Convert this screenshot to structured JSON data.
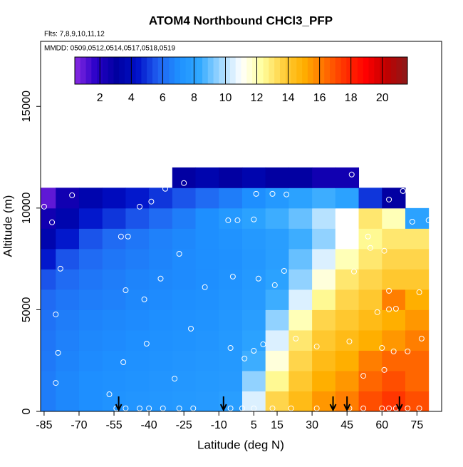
{
  "chart_data": {
    "type": "heatmap",
    "title": "ATOM4 Northbound CHCl3_PFP",
    "subtitle": "Flts: 7,8,9,10,11,12",
    "annotation": "MMDD: 0509,0512,0514,0517,0518,0519",
    "x_label": "Latitude (deg N)",
    "y_label": "Altitude (m)",
    "xlim": [
      -86.5,
      85.6
    ],
    "ylim": [
      0,
      18200
    ],
    "xticks": [
      -85,
      -70,
      -55,
      -40,
      -25,
      -10,
      5,
      15,
      30,
      45,
      60,
      75
    ],
    "yticks": [
      0,
      5000,
      10000,
      15000
    ],
    "x": [
      -85,
      -75,
      -65,
      -55,
      -45,
      -35,
      -25,
      -15,
      -5,
      5,
      15,
      25,
      35,
      45,
      55,
      65,
      75
    ],
    "y": [
      500,
      1500,
      2500,
      3500,
      4500,
      5500,
      6500,
      7500,
      8500,
      9500,
      10500,
      11500
    ],
    "values": [
      [
        6.5,
        6.8,
        7,
        7.2,
        7.3,
        7.4,
        7.5,
        7.6,
        7.8,
        10.5,
        13.5,
        14.5,
        15.5,
        16,
        17,
        17.5,
        17
      ],
      [
        6.5,
        6.8,
        7,
        7.1,
        7.2,
        7.3,
        7.4,
        7.5,
        7.6,
        9.5,
        12.5,
        14,
        15,
        15.5,
        16.5,
        17,
        16.5
      ],
      [
        6.4,
        6.7,
        6.9,
        7,
        7.1,
        7.2,
        7.3,
        7.4,
        7.5,
        8.5,
        11.5,
        13.5,
        14.5,
        15,
        16,
        16.5,
        16.5
      ],
      [
        6.3,
        6.6,
        6.8,
        6.9,
        7,
        7.1,
        7.2,
        7.3,
        7.5,
        8,
        10.5,
        13,
        14,
        14.5,
        15,
        15.5,
        16
      ],
      [
        6.2,
        6.5,
        6.7,
        6.8,
        6.9,
        7,
        7.1,
        7.2,
        7.4,
        7.8,
        9.5,
        12,
        13.5,
        14,
        14.5,
        15,
        15.5
      ],
      [
        6,
        6.3,
        6.5,
        6.6,
        6.8,
        6.9,
        7,
        7.1,
        7.3,
        7.6,
        8.5,
        10.5,
        12.5,
        13.5,
        14,
        16,
        15
      ],
      [
        5.5,
        6,
        6.3,
        6.5,
        6.7,
        6.8,
        6.9,
        7,
        7.2,
        7.5,
        8,
        9.5,
        11.5,
        13,
        13.5,
        14,
        14
      ],
      [
        4.5,
        5.5,
        6,
        6.3,
        6.5,
        6.7,
        6.9,
        7,
        7.1,
        7.4,
        7.8,
        9,
        10.5,
        12,
        13,
        13.5,
        13.5
      ],
      [
        3.5,
        4.5,
        5.5,
        6,
        6.3,
        6.6,
        6.8,
        7,
        7.2,
        7.5,
        7.8,
        8.5,
        9.5,
        11,
        12.5,
        13,
        13
      ],
      [
        2.5,
        3.5,
        4.5,
        5,
        5.5,
        6,
        6.5,
        7,
        7.5,
        8,
        8.5,
        9,
        10,
        11,
        13,
        12,
        8
      ],
      [
        1,
        2.5,
        3.5,
        4,
        4.5,
        5,
        5.5,
        6,
        6.5,
        7,
        7.5,
        8,
        8.5,
        8,
        5,
        3,
        null
      ],
      [
        null,
        null,
        null,
        null,
        null,
        null,
        3,
        3.5,
        3,
        3.5,
        3,
        3,
        2.5,
        2.5,
        null,
        null,
        null
      ]
    ],
    "colorbar": {
      "lim": [
        0.4,
        21.6
      ],
      "ticks": [
        2,
        4,
        6,
        8,
        10,
        12,
        14,
        16,
        18,
        20
      ],
      "colors": [
        "#8a2be2",
        "#2a00c8",
        "#0000a0",
        "#0010c8",
        "#2060f0",
        "#1e90ff",
        "#30a8ff",
        "#a0d8ff",
        "#ffffff",
        "#ffffa0",
        "#ffd040",
        "#ffb000",
        "#ff7000",
        "#ff3000",
        "#ff0000",
        "#c00000",
        "#8b1a1a"
      ]
    },
    "points": {
      "lat": [
        -85,
        -81.6,
        -73,
        -78,
        -80,
        -79,
        -80,
        -57,
        -51,
        -52,
        -49,
        -50,
        -44,
        -39,
        -33,
        -25,
        -27,
        -35,
        -42,
        -41,
        -22,
        -16,
        -29,
        -6,
        -2,
        -4,
        -5,
        1,
        5,
        6,
        13,
        19,
        7,
        14,
        18,
        9,
        5,
        23,
        32,
        47,
        55,
        63,
        69,
        73,
        80,
        54,
        55,
        61,
        48,
        63,
        76,
        58,
        63,
        66,
        77,
        60,
        65,
        71,
        46,
        52,
        61,
        -54,
        -50,
        -44,
        -40,
        -34,
        -27,
        -21,
        -5,
        0,
        5,
        13,
        21,
        32,
        46,
        52,
        60,
        63,
        66,
        71,
        76
      ],
      "alt": [
        10070,
        9300,
        10630,
        7020,
        4770,
        2880,
        1400,
        840,
        2420,
        8600,
        8600,
        5960,
        10070,
        10320,
        10950,
        11230,
        7750,
        6530,
        5510,
        3330,
        4070,
        6110,
        1610,
        9400,
        9400,
        6630,
        3120,
        2600,
        9440,
        10700,
        10700,
        10670,
        6530,
        6210,
        6910,
        3300,
        2980,
        3580,
        3190,
        11650,
        11230,
        10420,
        10840,
        9330,
        9400,
        8600,
        8040,
        7900,
        6880,
        5930,
        5860,
        4880,
        5020,
        5050,
        3580,
        3120,
        2950,
        2950,
        3440,
        1750,
        2040,
        150,
        150,
        150,
        150,
        150,
        150,
        150,
        150,
        150,
        150,
        150,
        150,
        150,
        150,
        150,
        150,
        150,
        150,
        150,
        150
      ]
    },
    "arrows": [
      -53,
      -8,
      39,
      45,
      67.5
    ]
  }
}
